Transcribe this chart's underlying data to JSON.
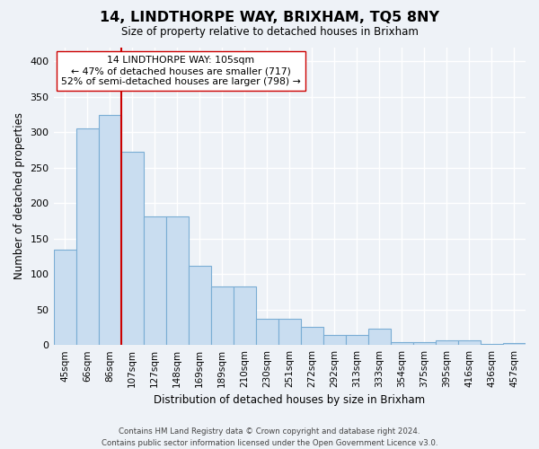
{
  "title": "14, LINDTHORPE WAY, BRIXHAM, TQ5 8NY",
  "subtitle": "Size of property relative to detached houses in Brixham",
  "xlabel": "Distribution of detached houses by size in Brixham",
  "ylabel": "Number of detached properties",
  "bar_labels": [
    "45sqm",
    "66sqm",
    "86sqm",
    "107sqm",
    "127sqm",
    "148sqm",
    "169sqm",
    "189sqm",
    "210sqm",
    "230sqm",
    "251sqm",
    "272sqm",
    "292sqm",
    "313sqm",
    "333sqm",
    "354sqm",
    "375sqm",
    "395sqm",
    "416sqm",
    "436sqm",
    "457sqm"
  ],
  "bar_values": [
    135,
    305,
    325,
    272,
    181,
    181,
    112,
    83,
    83,
    37,
    37,
    25,
    14,
    14,
    23,
    4,
    4,
    7,
    7,
    2,
    3
  ],
  "bar_color": "#c9ddf0",
  "bar_edge_color": "#7aadd4",
  "vline_x_idx": 3,
  "vline_color": "#cc0000",
  "annotation_text": "14 LINDTHORPE WAY: 105sqm\n← 47% of detached houses are smaller (717)\n52% of semi-detached houses are larger (798) →",
  "annotation_box_color": "#ffffff",
  "annotation_box_edge": "#cc0000",
  "ylim": [
    0,
    420
  ],
  "yticks": [
    0,
    50,
    100,
    150,
    200,
    250,
    300,
    350,
    400
  ],
  "footer_line1": "Contains HM Land Registry data © Crown copyright and database right 2024.",
  "footer_line2": "Contains public sector information licensed under the Open Government Licence v3.0.",
  "bg_color": "#eef2f7",
  "grid_color": "#ffffff"
}
